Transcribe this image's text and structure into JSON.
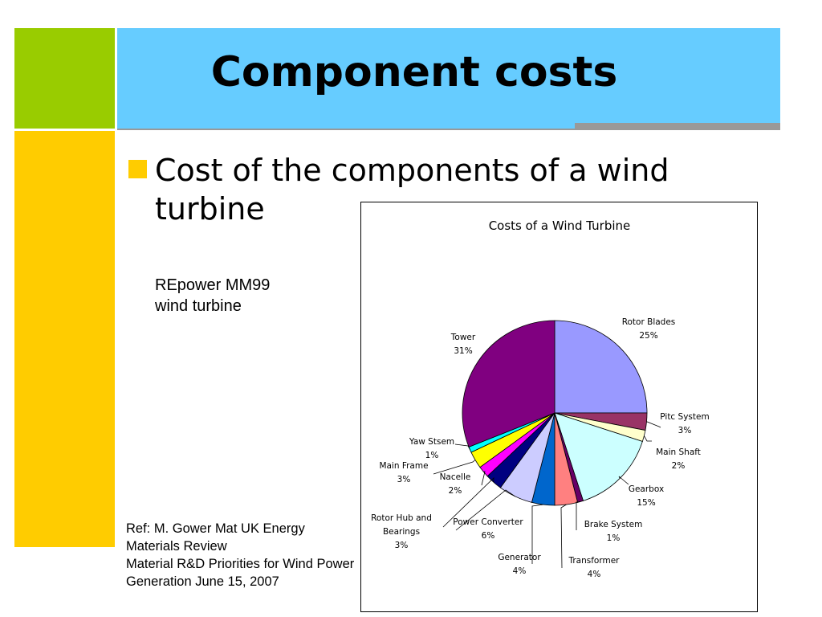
{
  "slide": {
    "title": "Component costs",
    "bullet": "Cost of the components of a wind turbine",
    "subtitle": "REpower MM99\nwind turbine",
    "reference": "Ref: M. Gower Mat UK Energy Materials Review\nMaterial R&D Priorities for Wind Power Generation June 15, 2007"
  },
  "colors": {
    "green_block": "#99cc00",
    "title_bar": "#66ccff",
    "yellow_block": "#ffcc00",
    "rule": "#999999"
  },
  "chart_data": {
    "type": "pie",
    "title": "Costs of a Wind Turbine",
    "slices": [
      {
        "label": "Rotor Blades",
        "value": 25,
        "pct": "25%",
        "color": "#9999ff"
      },
      {
        "label": "Pitc System",
        "value": 3,
        "pct": "3%",
        "color": "#993366"
      },
      {
        "label": "Main Shaft",
        "value": 2,
        "pct": "2%",
        "color": "#ffffcc"
      },
      {
        "label": "Gearbox",
        "value": 15,
        "pct": "15%",
        "color": "#ccffff"
      },
      {
        "label": "Brake System",
        "value": 1,
        "pct": "1%",
        "color": "#660066"
      },
      {
        "label": "Transformer",
        "value": 4,
        "pct": "4%",
        "color": "#ff8080"
      },
      {
        "label": "Generator",
        "value": 4,
        "pct": "4%",
        "color": "#0066cc"
      },
      {
        "label": "Power Converter",
        "value": 6,
        "pct": "6%",
        "color": "#ccccff"
      },
      {
        "label": "Rotor Hub and Bearings",
        "value": 3,
        "pct": "3%",
        "color": "#000080"
      },
      {
        "label": "Nacelle",
        "value": 2,
        "pct": "2%",
        "color": "#ff00ff"
      },
      {
        "label": "Main Frame",
        "value": 3,
        "pct": "3%",
        "color": "#ffff00"
      },
      {
        "label": "Yaw Stsem",
        "value": 1,
        "pct": "1%",
        "color": "#00ffff"
      },
      {
        "label": "Tower",
        "value": 31,
        "pct": "31%",
        "color": "#800080"
      }
    ]
  }
}
